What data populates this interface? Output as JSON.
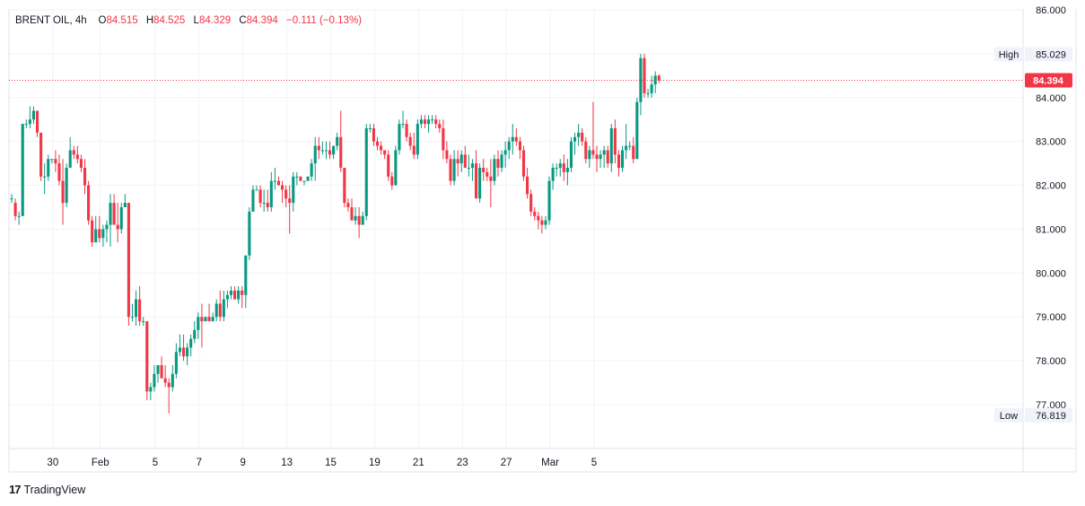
{
  "header": {
    "symbol": "BRENT OIL",
    "interval": "4h",
    "open_label": "O",
    "open": "84.515",
    "high_label": "H",
    "high": "84.525",
    "low_label": "L",
    "low": "84.329",
    "close_label": "C",
    "close": "84.394",
    "change": "−0.111 (−0.13%)"
  },
  "brand": {
    "logo": "17",
    "name": "TradingView"
  },
  "colors": {
    "up": "#089981",
    "down": "#f23645",
    "grid": "#f0f3fa",
    "axis_text": "#131722"
  },
  "chart_data": {
    "type": "candlestick",
    "symbol": "BRENT OIL",
    "interval": "4h",
    "y_ticks": [
      "77.000",
      "78.000",
      "79.000",
      "80.000",
      "81.000",
      "82.000",
      "83.000",
      "84.000",
      "85.000",
      "86.000"
    ],
    "ylim": [
      75.8,
      86.0
    ],
    "x_ticks": [
      {
        "label": "30",
        "index": 11
      },
      {
        "label": "Feb",
        "index": 24
      },
      {
        "label": "5",
        "index": 39
      },
      {
        "label": "7",
        "index": 51
      },
      {
        "label": "9",
        "index": 63
      },
      {
        "label": "13",
        "index": 75
      },
      {
        "label": "15",
        "index": 87
      },
      {
        "label": "19",
        "index": 99
      },
      {
        "label": "21",
        "index": 111
      },
      {
        "label": "23",
        "index": 123
      },
      {
        "label": "27",
        "index": 135
      },
      {
        "label": "Mar",
        "index": 147
      },
      {
        "label": "5",
        "index": 159
      }
    ],
    "high_marker": {
      "label": "High",
      "value": "85.029"
    },
    "low_marker": {
      "label": "Low",
      "value": "76.819"
    },
    "last_price": {
      "value": "84.394"
    },
    "candles": [
      [
        81.7,
        81.8,
        81.6,
        81.7
      ],
      [
        81.6,
        81.7,
        81.2,
        81.3
      ],
      [
        81.3,
        81.4,
        81.1,
        81.3
      ],
      [
        81.3,
        83.4,
        81.3,
        83.4
      ],
      [
        83.4,
        83.5,
        83.3,
        83.4
      ],
      [
        83.4,
        83.8,
        83.3,
        83.5
      ],
      [
        83.5,
        83.8,
        83.4,
        83.7
      ],
      [
        83.7,
        83.7,
        83.1,
        83.2
      ],
      [
        83.2,
        83.2,
        82.1,
        82.2
      ],
      [
        82.2,
        82.5,
        81.8,
        82.2
      ],
      [
        82.2,
        82.7,
        82.1,
        82.6
      ],
      [
        82.6,
        82.6,
        82.5,
        82.6
      ],
      [
        82.6,
        82.8,
        82.3,
        82.5
      ],
      [
        82.5,
        82.7,
        82.0,
        82.1
      ],
      [
        82.1,
        82.6,
        81.1,
        81.6
      ],
      [
        81.6,
        82.5,
        81.5,
        82.4
      ],
      [
        82.4,
        83.1,
        82.4,
        82.8
      ],
      [
        82.8,
        82.9,
        82.6,
        82.7
      ],
      [
        82.7,
        82.9,
        82.5,
        82.6
      ],
      [
        82.6,
        82.7,
        82.3,
        82.4
      ],
      [
        82.4,
        82.6,
        81.8,
        82.0
      ],
      [
        82.0,
        82.1,
        81.1,
        81.2
      ],
      [
        81.2,
        81.3,
        80.6,
        80.7
      ],
      [
        80.7,
        81.3,
        80.7,
        81.0
      ],
      [
        81.0,
        81.3,
        80.7,
        80.8
      ],
      [
        80.8,
        81.1,
        80.6,
        81.0
      ],
      [
        81.0,
        81.2,
        80.7,
        81.1
      ],
      [
        81.1,
        81.8,
        80.6,
        81.6
      ],
      [
        81.6,
        81.8,
        81.1,
        81.1
      ],
      [
        81.1,
        81.6,
        80.7,
        81.0
      ],
      [
        81.0,
        81.6,
        80.9,
        81.5
      ],
      [
        81.5,
        81.8,
        81.5,
        81.6
      ],
      [
        81.6,
        81.6,
        78.8,
        79.0
      ],
      [
        79.0,
        79.3,
        78.9,
        79.0
      ],
      [
        79.0,
        79.6,
        78.8,
        79.4
      ],
      [
        79.4,
        79.7,
        78.8,
        78.9
      ],
      [
        78.9,
        79.0,
        78.8,
        78.9
      ],
      [
        78.9,
        78.9,
        77.1,
        77.3
      ],
      [
        77.3,
        77.5,
        77.1,
        77.4
      ],
      [
        77.4,
        77.9,
        77.3,
        77.7
      ],
      [
        77.7,
        77.9,
        77.5,
        77.9
      ],
      [
        77.9,
        78.1,
        77.6,
        77.6
      ],
      [
        77.6,
        77.9,
        77.4,
        77.5
      ],
      [
        77.5,
        77.6,
        76.8,
        77.4
      ],
      [
        77.4,
        77.9,
        77.3,
        77.7
      ],
      [
        77.7,
        78.4,
        77.6,
        78.2
      ],
      [
        78.2,
        78.6,
        78.1,
        78.3
      ],
      [
        78.3,
        78.6,
        78.0,
        78.1
      ],
      [
        78.1,
        78.4,
        77.9,
        78.3
      ],
      [
        78.3,
        78.6,
        78.1,
        78.5
      ],
      [
        78.5,
        78.9,
        78.4,
        78.7
      ],
      [
        78.7,
        79.1,
        78.5,
        79.0
      ],
      [
        79.0,
        79.3,
        78.3,
        78.9
      ],
      [
        78.9,
        79.0,
        78.9,
        79.0
      ],
      [
        79.0,
        79.3,
        78.9,
        78.9
      ],
      [
        78.9,
        79.1,
        78.9,
        79.0
      ],
      [
        79.0,
        79.4,
        78.9,
        79.3
      ],
      [
        79.3,
        79.6,
        78.9,
        79.0
      ],
      [
        79.0,
        79.6,
        78.9,
        79.4
      ],
      [
        79.4,
        79.6,
        79.2,
        79.5
      ],
      [
        79.5,
        79.7,
        79.4,
        79.6
      ],
      [
        79.6,
        79.7,
        79.4,
        79.4
      ],
      [
        79.4,
        79.7,
        79.3,
        79.6
      ],
      [
        79.6,
        79.7,
        79.2,
        79.5
      ],
      [
        79.5,
        80.4,
        79.2,
        80.4
      ],
      [
        80.4,
        81.5,
        80.3,
        81.4
      ],
      [
        81.4,
        82.0,
        81.4,
        81.9
      ],
      [
        81.9,
        82.0,
        81.9,
        81.9
      ],
      [
        81.9,
        82.0,
        81.5,
        81.6
      ],
      [
        81.6,
        81.9,
        81.4,
        81.6
      ],
      [
        81.6,
        81.9,
        81.4,
        81.5
      ],
      [
        81.5,
        82.3,
        81.4,
        82.1
      ],
      [
        82.1,
        82.4,
        81.9,
        82.1
      ],
      [
        82.1,
        82.2,
        82.0,
        82.0
      ],
      [
        82.0,
        82.1,
        81.6,
        81.9
      ],
      [
        81.9,
        82.0,
        81.5,
        81.7
      ],
      [
        81.7,
        82.0,
        80.9,
        81.6
      ],
      [
        81.6,
        82.3,
        81.4,
        82.2
      ],
      [
        82.2,
        82.3,
        82.0,
        82.2
      ],
      [
        82.2,
        82.2,
        82.1,
        82.1
      ],
      [
        82.1,
        82.1,
        82.0,
        82.1
      ],
      [
        82.1,
        82.2,
        82.1,
        82.2
      ],
      [
        82.2,
        82.6,
        82.1,
        82.5
      ],
      [
        82.5,
        83.1,
        82.1,
        82.9
      ],
      [
        82.9,
        83.1,
        82.6,
        82.8
      ],
      [
        82.8,
        83.0,
        82.7,
        82.8
      ],
      [
        82.8,
        83.0,
        82.6,
        82.8
      ],
      [
        82.8,
        83.0,
        82.6,
        82.7
      ],
      [
        82.7,
        82.9,
        82.6,
        82.9
      ],
      [
        82.9,
        83.2,
        82.8,
        83.1
      ],
      [
        83.1,
        83.7,
        82.3,
        82.4
      ],
      [
        82.4,
        82.4,
        81.5,
        81.6
      ],
      [
        81.6,
        81.7,
        81.4,
        81.5
      ],
      [
        81.5,
        81.7,
        81.2,
        81.2
      ],
      [
        81.2,
        81.5,
        81.1,
        81.3
      ],
      [
        81.3,
        81.5,
        80.8,
        81.1
      ],
      [
        81.1,
        81.4,
        81.1,
        81.3
      ],
      [
        81.3,
        83.4,
        81.2,
        83.3
      ],
      [
        83.3,
        83.4,
        83.2,
        83.3
      ],
      [
        83.3,
        83.4,
        82.9,
        83.0
      ],
      [
        83.0,
        83.1,
        82.8,
        82.9
      ],
      [
        82.9,
        83.0,
        82.7,
        82.8
      ],
      [
        82.8,
        82.8,
        82.6,
        82.7
      ],
      [
        82.7,
        82.8,
        82.1,
        82.2
      ],
      [
        82.2,
        82.3,
        81.9,
        82.0
      ],
      [
        82.0,
        82.9,
        82.0,
        82.8
      ],
      [
        82.8,
        83.5,
        82.7,
        83.4
      ],
      [
        83.4,
        83.7,
        83.3,
        83.4
      ],
      [
        83.4,
        83.5,
        83.0,
        83.1
      ],
      [
        83.1,
        83.2,
        82.8,
        82.9
      ],
      [
        82.9,
        83.2,
        82.6,
        82.7
      ],
      [
        82.7,
        83.5,
        82.6,
        83.4
      ],
      [
        83.4,
        83.6,
        83.3,
        83.5
      ],
      [
        83.5,
        83.6,
        83.3,
        83.4
      ],
      [
        83.4,
        83.6,
        83.2,
        83.5
      ],
      [
        83.5,
        83.6,
        83.4,
        83.5
      ],
      [
        83.5,
        83.6,
        83.3,
        83.4
      ],
      [
        83.4,
        83.5,
        83.2,
        83.3
      ],
      [
        83.3,
        83.5,
        82.6,
        82.8
      ],
      [
        82.8,
        83.0,
        82.5,
        82.6
      ],
      [
        82.6,
        82.7,
        82.0,
        82.1
      ],
      [
        82.1,
        82.8,
        82.0,
        82.6
      ],
      [
        82.6,
        82.8,
        82.2,
        82.5
      ],
      [
        82.5,
        82.8,
        82.3,
        82.7
      ],
      [
        82.7,
        82.9,
        82.4,
        82.4
      ],
      [
        82.4,
        82.7,
        82.2,
        82.4
      ],
      [
        82.4,
        82.6,
        82.1,
        82.5
      ],
      [
        82.5,
        82.8,
        81.7,
        81.7
      ]
    ]
  }
}
